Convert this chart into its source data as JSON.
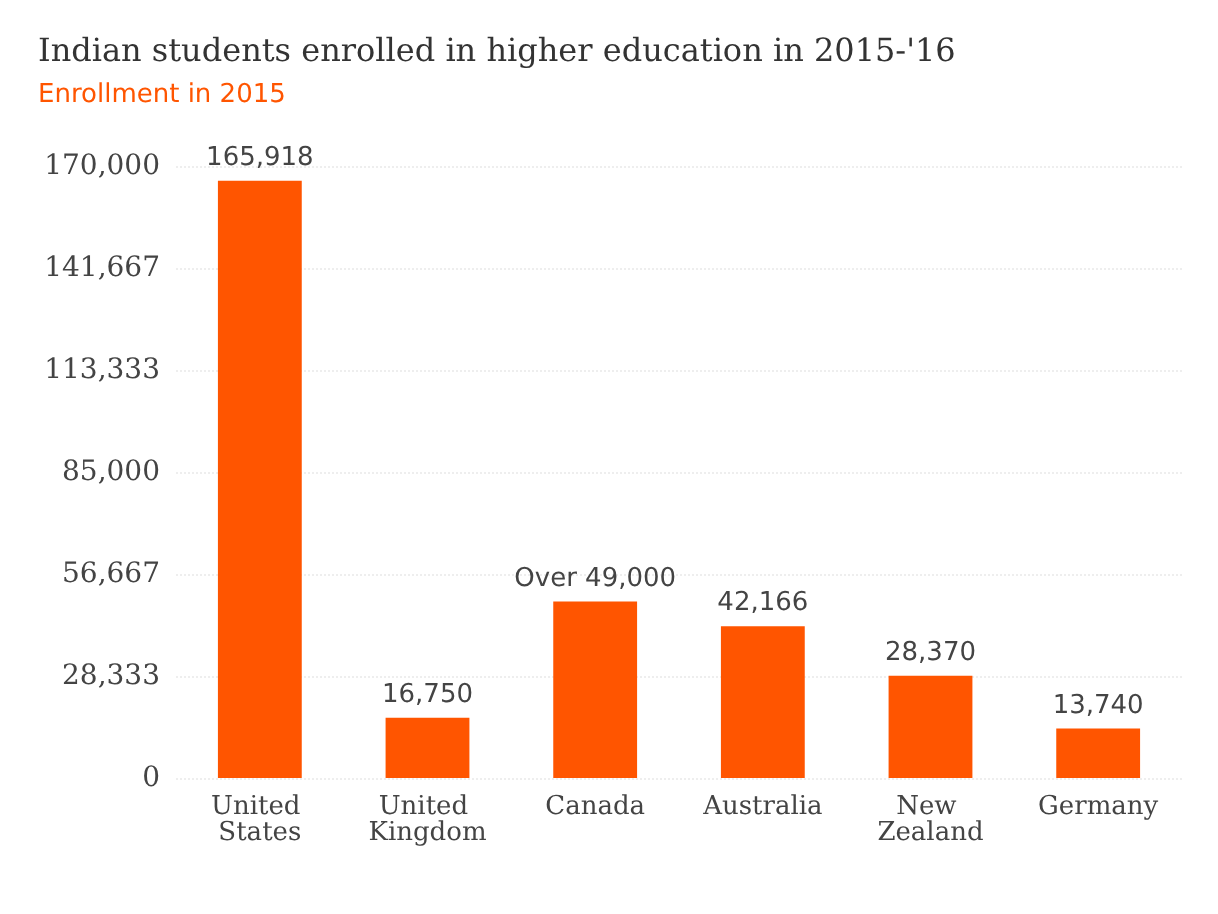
{
  "chart_data": {
    "type": "bar",
    "title": "Indian students enrolled in higher education in 2015-'16",
    "subtitle": "Enrollment in 2015",
    "categories": [
      "United States",
      "United Kingdom",
      "Canada",
      "Australia",
      "New Zealand",
      "Germany"
    ],
    "values": [
      165918,
      16750,
      49000,
      42166,
      28370,
      13740
    ],
    "value_labels": [
      "165,918",
      "16,750",
      "Over 49,000",
      "42,166",
      "28,370",
      "13,740"
    ],
    "color": "#ff5500",
    "ylim": [
      0,
      170000
    ],
    "yticks": [
      0,
      {
        "value": 28333.333,
        "label": "28,333"
      },
      {
        "value": 56666.667,
        "label": "56,667"
      },
      {
        "value": 85000,
        "label": "85,000"
      },
      {
        "value": 113333.333,
        "label": "113,333"
      },
      {
        "value": 141666.667,
        "label": "141,667"
      },
      {
        "value": 170000,
        "label": "170,000"
      }
    ],
    "grid": "y"
  }
}
